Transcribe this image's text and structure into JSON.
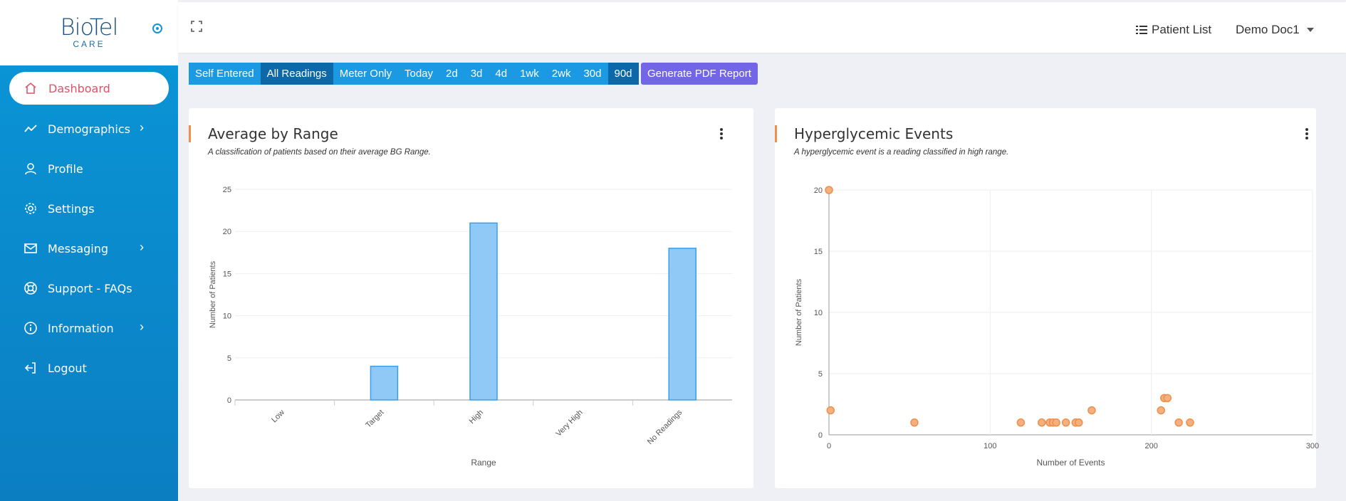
{
  "app": {
    "logo_main": "BioTel",
    "logo_sub": "CARE"
  },
  "sidebar": {
    "items": [
      {
        "label": "Dashboard",
        "icon": "home-icon",
        "active": true,
        "has_children": false
      },
      {
        "label": "Demographics",
        "icon": "trend-icon",
        "active": false,
        "has_children": true
      },
      {
        "label": "Profile",
        "icon": "user-icon",
        "active": false,
        "has_children": false
      },
      {
        "label": "Settings",
        "icon": "gear-icon",
        "active": false,
        "has_children": false
      },
      {
        "label": "Messaging",
        "icon": "envelope-icon",
        "active": false,
        "has_children": true
      },
      {
        "label": "Support - FAQs",
        "icon": "lifebuoy-icon",
        "active": false,
        "has_children": false
      },
      {
        "label": "Information",
        "icon": "info-icon",
        "active": false,
        "has_children": true
      },
      {
        "label": "Logout",
        "icon": "logout-icon",
        "active": false,
        "has_children": false
      }
    ],
    "chevron": "›"
  },
  "topbar": {
    "patient_list": "Patient List",
    "user": "Demo Doc1"
  },
  "filters": {
    "source": [
      {
        "label": "Self Entered",
        "selected": false
      },
      {
        "label": "All Readings",
        "selected": true
      },
      {
        "label": "Meter Only",
        "selected": false
      }
    ],
    "period": [
      {
        "label": "Today",
        "selected": false
      },
      {
        "label": "2d",
        "selected": false
      },
      {
        "label": "3d",
        "selected": false
      },
      {
        "label": "4d",
        "selected": false
      },
      {
        "label": "1wk",
        "selected": false
      },
      {
        "label": "2wk",
        "selected": false
      },
      {
        "label": "30d",
        "selected": false
      },
      {
        "label": "90d",
        "selected": true
      }
    ],
    "pdf_button": "Generate PDF Report"
  },
  "colors": {
    "accent": "#f08f4a",
    "bar_fill": "#90c8f6",
    "bar_stroke": "#3a9ee8",
    "point_fill": "#f4b07f",
    "point_stroke": "#ee8f4c",
    "active_nav": "#e0516a"
  },
  "cards": {
    "range": {
      "title": "Average by Range",
      "subtitle": "A classification of patients based on their average BG Range."
    },
    "hyper": {
      "title": "Hyperglycemic Events",
      "subtitle": "A hyperglycemic event is a reading classified in high range."
    }
  },
  "chart_data": [
    {
      "type": "bar",
      "title": "Average by Range",
      "xlabel": "Range",
      "ylabel": "Number of Patients",
      "categories": [
        "Low",
        "Target",
        "High",
        "Very High",
        "No Readings"
      ],
      "values": [
        0,
        4,
        21,
        0,
        18
      ],
      "ylim": [
        0,
        25
      ],
      "yticks": [
        0,
        5,
        10,
        15,
        20,
        25
      ],
      "grid": true
    },
    {
      "type": "scatter",
      "title": "Hyperglycemic Events",
      "xlabel": "Number of Events",
      "ylabel": "Number of Patients",
      "xlim": [
        0,
        300
      ],
      "ylim": [
        0,
        20
      ],
      "xticks": [
        0,
        100,
        200,
        300
      ],
      "yticks": [
        0,
        5,
        10,
        15,
        20
      ],
      "grid": true,
      "points": [
        {
          "x": 0,
          "y": 20
        },
        {
          "x": 1,
          "y": 2
        },
        {
          "x": 53,
          "y": 1
        },
        {
          "x": 119,
          "y": 1
        },
        {
          "x": 132,
          "y": 1
        },
        {
          "x": 137,
          "y": 1
        },
        {
          "x": 139,
          "y": 1
        },
        {
          "x": 141,
          "y": 1
        },
        {
          "x": 147,
          "y": 1
        },
        {
          "x": 153,
          "y": 1
        },
        {
          "x": 155,
          "y": 1
        },
        {
          "x": 163,
          "y": 2
        },
        {
          "x": 206,
          "y": 2
        },
        {
          "x": 208,
          "y": 3
        },
        {
          "x": 210,
          "y": 3
        },
        {
          "x": 217,
          "y": 1
        },
        {
          "x": 224,
          "y": 1
        }
      ]
    }
  ]
}
